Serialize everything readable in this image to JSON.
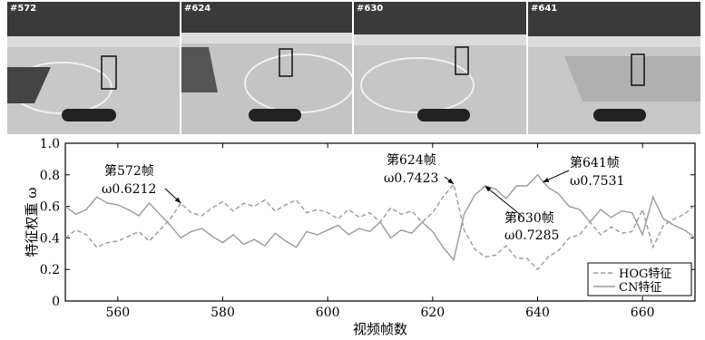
{
  "frames": [
    {
      "tag": "#572"
    },
    {
      "tag": "#624"
    },
    {
      "tag": "#630"
    },
    {
      "tag": "#641"
    }
  ],
  "colors": {
    "hog": "#9a9a9a",
    "cn": "#9a9a9a",
    "axis": "#000000"
  },
  "chart_data": {
    "type": "line",
    "xlabel": "视频帧数",
    "ylabel": "特征权重 ω",
    "xlim": [
      550,
      670
    ],
    "ylim": [
      0,
      1.0
    ],
    "xticks": [
      "560",
      "580",
      "600",
      "620",
      "640",
      "660"
    ],
    "yticks": [
      "0",
      "0.2",
      "0.4",
      "0.6",
      "0.8",
      "1.0"
    ],
    "grid": false,
    "legend_position": "bottom-right",
    "series": [
      {
        "name": "HOG特征",
        "style": "dashed",
        "x": [
          550,
          552,
          554,
          556,
          558,
          560,
          562,
          564,
          566,
          568,
          570,
          572,
          574,
          576,
          578,
          580,
          582,
          584,
          586,
          588,
          590,
          592,
          594,
          596,
          598,
          600,
          602,
          604,
          606,
          608,
          610,
          612,
          614,
          616,
          618,
          620,
          622,
          624,
          626,
          628,
          630,
          632,
          634,
          636,
          638,
          640,
          642,
          644,
          646,
          648,
          650,
          652,
          654,
          656,
          658,
          660,
          662,
          664,
          666,
          668,
          670
        ],
        "y": [
          0.4,
          0.45,
          0.42,
          0.34,
          0.37,
          0.38,
          0.41,
          0.44,
          0.38,
          0.45,
          0.52,
          0.62,
          0.56,
          0.54,
          0.59,
          0.63,
          0.57,
          0.62,
          0.6,
          0.64,
          0.57,
          0.61,
          0.64,
          0.56,
          0.58,
          0.56,
          0.52,
          0.58,
          0.53,
          0.56,
          0.5,
          0.59,
          0.55,
          0.57,
          0.5,
          0.56,
          0.66,
          0.74,
          0.45,
          0.33,
          0.28,
          0.29,
          0.35,
          0.27,
          0.27,
          0.2,
          0.28,
          0.32,
          0.4,
          0.42,
          0.5,
          0.42,
          0.47,
          0.43,
          0.44,
          0.58,
          0.34,
          0.48,
          0.52,
          0.55,
          0.61
        ]
      },
      {
        "name": "CN特征",
        "style": "solid",
        "x": [
          550,
          552,
          554,
          556,
          558,
          560,
          562,
          564,
          566,
          568,
          570,
          572,
          574,
          576,
          578,
          580,
          582,
          584,
          586,
          588,
          590,
          592,
          594,
          596,
          598,
          600,
          602,
          604,
          606,
          608,
          610,
          612,
          614,
          616,
          618,
          620,
          622,
          624,
          626,
          628,
          630,
          632,
          634,
          636,
          638,
          640,
          642,
          644,
          646,
          648,
          650,
          652,
          654,
          656,
          658,
          660,
          662,
          664,
          666,
          668,
          670
        ],
        "y": [
          0.6,
          0.55,
          0.58,
          0.66,
          0.62,
          0.61,
          0.58,
          0.54,
          0.62,
          0.55,
          0.48,
          0.4,
          0.44,
          0.46,
          0.41,
          0.37,
          0.42,
          0.36,
          0.39,
          0.35,
          0.43,
          0.38,
          0.34,
          0.44,
          0.42,
          0.45,
          0.48,
          0.42,
          0.46,
          0.44,
          0.5,
          0.4,
          0.45,
          0.43,
          0.5,
          0.44,
          0.34,
          0.26,
          0.55,
          0.67,
          0.73,
          0.71,
          0.65,
          0.73,
          0.73,
          0.8,
          0.72,
          0.68,
          0.6,
          0.58,
          0.5,
          0.58,
          0.53,
          0.57,
          0.56,
          0.42,
          0.66,
          0.52,
          0.48,
          0.45,
          0.4
        ]
      }
    ],
    "annotations": [
      {
        "frame_label": "第572帧",
        "value_label": "ω0.6212",
        "x": 572,
        "y": 0.6212
      },
      {
        "frame_label": "第624帧",
        "value_label": "ω0.7423",
        "x": 624,
        "y": 0.7423
      },
      {
        "frame_label": "第630帧",
        "value_label": "ω0.7285",
        "x": 630,
        "y": 0.7285
      },
      {
        "frame_label": "第641帧",
        "value_label": "ω0.7531",
        "x": 641,
        "y": 0.7531
      }
    ]
  }
}
